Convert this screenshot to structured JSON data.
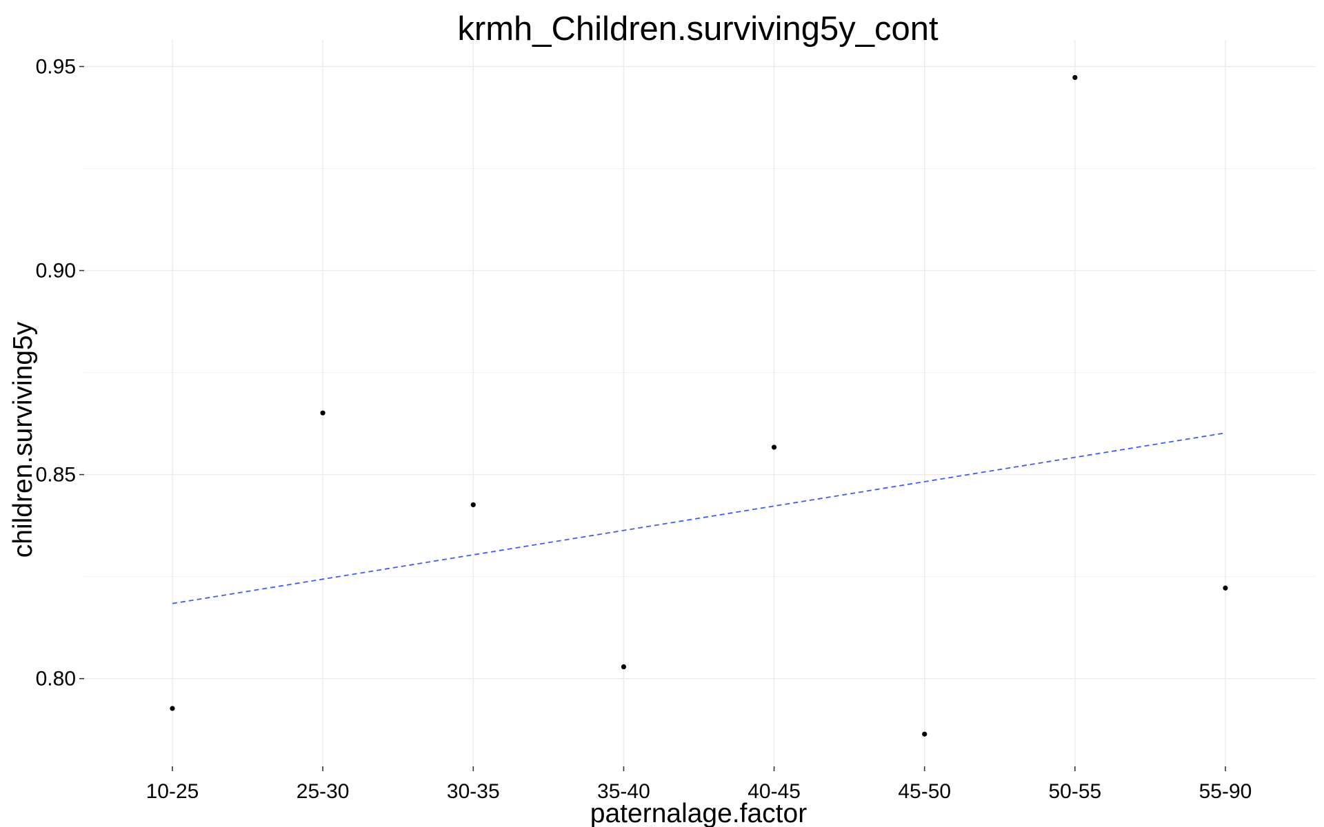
{
  "chart_data": {
    "type": "scatter",
    "title": "krmh_Children.surviving5y_cont",
    "xlabel": "paternalage.factor",
    "ylabel": "children.surviving5y",
    "categories": [
      "10-25",
      "25-30",
      "30-35",
      "35-40",
      "40-45",
      "45-50",
      "50-55",
      "55-90"
    ],
    "values": [
      0.7927,
      0.8651,
      0.8426,
      0.8029,
      0.8567,
      0.7864,
      0.9473,
      0.8222
    ],
    "trend": {
      "style": "dashed",
      "color": "#3d5afe",
      "start": 0.8184,
      "end": 0.8602
    },
    "ylim": [
      0.7785,
      0.9565
    ],
    "yticks": [
      0.8,
      0.85,
      0.9,
      0.95
    ],
    "ytick_labels": [
      "0.80",
      "0.85",
      "0.90",
      "0.95"
    ],
    "grid": true,
    "point_color": "#000000"
  }
}
